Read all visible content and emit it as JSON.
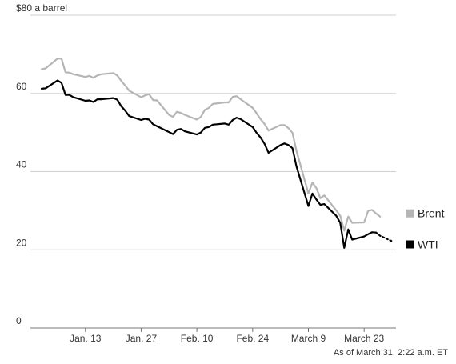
{
  "chart_data": {
    "type": "line",
    "unit_label": "$80 a barrel",
    "ylim": [
      0,
      80
    ],
    "yticks": [
      {
        "value": 80,
        "label": "$80 a barrel"
      },
      {
        "value": 60,
        "label": "60"
      },
      {
        "value": 40,
        "label": "40"
      },
      {
        "value": 20,
        "label": "20"
      },
      {
        "value": 0,
        "label": "0"
      }
    ],
    "xlim": [
      "2020-01-02",
      "2020-03-31"
    ],
    "xticks": [
      {
        "date": "2020-01-13",
        "label": "Jan. 13"
      },
      {
        "date": "2020-01-27",
        "label": "Jan. 27"
      },
      {
        "date": "2020-02-10",
        "label": "Feb. 10"
      },
      {
        "date": "2020-02-24",
        "label": "Feb. 24"
      },
      {
        "date": "2020-03-09",
        "label": "March 9"
      },
      {
        "date": "2020-03-23",
        "label": "March 23"
      }
    ],
    "grid": true,
    "legend_placement": "right",
    "series": [
      {
        "name": "Brent",
        "color": "#b5b5b5",
        "points": [
          [
            "2020-01-02",
            66.2
          ],
          [
            "2020-01-03",
            66.4
          ],
          [
            "2020-01-06",
            68.9
          ],
          [
            "2020-01-07",
            68.9
          ],
          [
            "2020-01-08",
            65.4
          ],
          [
            "2020-01-09",
            65.3
          ],
          [
            "2020-01-10",
            64.9
          ],
          [
            "2020-01-13",
            64.2
          ],
          [
            "2020-01-14",
            64.5
          ],
          [
            "2020-01-15",
            64.0
          ],
          [
            "2020-01-16",
            64.6
          ],
          [
            "2020-01-17",
            64.9
          ],
          [
            "2020-01-20",
            65.2
          ],
          [
            "2020-01-21",
            64.6
          ],
          [
            "2020-01-22",
            63.2
          ],
          [
            "2020-01-23",
            62.0
          ],
          [
            "2020-01-24",
            60.7
          ],
          [
            "2020-01-27",
            59.0
          ],
          [
            "2020-01-28",
            59.5
          ],
          [
            "2020-01-29",
            59.8
          ],
          [
            "2020-01-30",
            58.3
          ],
          [
            "2020-01-31",
            58.2
          ],
          [
            "2020-02-03",
            54.5
          ],
          [
            "2020-02-04",
            54.0
          ],
          [
            "2020-02-05",
            55.3
          ],
          [
            "2020-02-06",
            55.0
          ],
          [
            "2020-02-07",
            54.5
          ],
          [
            "2020-02-10",
            53.3
          ],
          [
            "2020-02-11",
            54.0
          ],
          [
            "2020-02-12",
            55.8
          ],
          [
            "2020-02-13",
            56.3
          ],
          [
            "2020-02-14",
            57.3
          ],
          [
            "2020-02-17",
            57.7
          ],
          [
            "2020-02-18",
            57.7
          ],
          [
            "2020-02-19",
            59.1
          ],
          [
            "2020-02-20",
            59.3
          ],
          [
            "2020-02-21",
            58.5
          ],
          [
            "2020-02-24",
            56.3
          ],
          [
            "2020-02-25",
            54.9
          ],
          [
            "2020-02-26",
            53.4
          ],
          [
            "2020-02-27",
            52.2
          ],
          [
            "2020-02-28",
            50.5
          ],
          [
            "2020-03-02",
            51.9
          ],
          [
            "2020-03-03",
            51.9
          ],
          [
            "2020-03-04",
            51.1
          ],
          [
            "2020-03-05",
            49.9
          ],
          [
            "2020-03-06",
            45.3
          ],
          [
            "2020-03-09",
            34.4
          ],
          [
            "2020-03-10",
            37.2
          ],
          [
            "2020-03-11",
            35.8
          ],
          [
            "2020-03-12",
            33.2
          ],
          [
            "2020-03-13",
            33.9
          ],
          [
            "2020-03-16",
            30.1
          ],
          [
            "2020-03-17",
            28.7
          ],
          [
            "2020-03-18",
            24.9
          ],
          [
            "2020-03-19",
            28.5
          ],
          [
            "2020-03-20",
            26.9
          ],
          [
            "2020-03-23",
            27.0
          ],
          [
            "2020-03-24",
            30.0
          ],
          [
            "2020-03-25",
            30.2
          ],
          [
            "2020-03-26",
            29.3
          ],
          [
            "2020-03-27",
            28.5
          ]
        ]
      },
      {
        "name": "WTI",
        "color": "#000000",
        "points": [
          [
            "2020-01-02",
            61.2
          ],
          [
            "2020-01-03",
            61.3
          ],
          [
            "2020-01-06",
            63.3
          ],
          [
            "2020-01-07",
            62.7
          ],
          [
            "2020-01-08",
            59.6
          ],
          [
            "2020-01-09",
            59.6
          ],
          [
            "2020-01-10",
            59.0
          ],
          [
            "2020-01-13",
            58.1
          ],
          [
            "2020-01-14",
            58.2
          ],
          [
            "2020-01-15",
            57.8
          ],
          [
            "2020-01-16",
            58.5
          ],
          [
            "2020-01-17",
            58.5
          ],
          [
            "2020-01-20",
            58.8
          ],
          [
            "2020-01-21",
            58.4
          ],
          [
            "2020-01-22",
            56.7
          ],
          [
            "2020-01-23",
            55.6
          ],
          [
            "2020-01-24",
            54.2
          ],
          [
            "2020-01-27",
            53.2
          ],
          [
            "2020-01-28",
            53.5
          ],
          [
            "2020-01-29",
            53.3
          ],
          [
            "2020-01-30",
            52.1
          ],
          [
            "2020-01-31",
            51.6
          ],
          [
            "2020-02-03",
            50.1
          ],
          [
            "2020-02-04",
            49.6
          ],
          [
            "2020-02-05",
            50.7
          ],
          [
            "2020-02-06",
            50.9
          ],
          [
            "2020-02-07",
            50.3
          ],
          [
            "2020-02-10",
            49.5
          ],
          [
            "2020-02-11",
            50.0
          ],
          [
            "2020-02-12",
            51.2
          ],
          [
            "2020-02-13",
            51.4
          ],
          [
            "2020-02-14",
            52.0
          ],
          [
            "2020-02-17",
            52.3
          ],
          [
            "2020-02-18",
            52.0
          ],
          [
            "2020-02-19",
            53.2
          ],
          [
            "2020-02-20",
            53.8
          ],
          [
            "2020-02-21",
            53.4
          ],
          [
            "2020-02-24",
            51.4
          ],
          [
            "2020-02-25",
            49.9
          ],
          [
            "2020-02-26",
            48.7
          ],
          [
            "2020-02-27",
            47.1
          ],
          [
            "2020-02-28",
            44.8
          ],
          [
            "2020-03-02",
            46.8
          ],
          [
            "2020-03-03",
            47.2
          ],
          [
            "2020-03-04",
            46.8
          ],
          [
            "2020-03-05",
            46.0
          ],
          [
            "2020-03-06",
            41.3
          ],
          [
            "2020-03-09",
            31.2
          ],
          [
            "2020-03-10",
            34.4
          ],
          [
            "2020-03-11",
            32.9
          ],
          [
            "2020-03-12",
            31.5
          ],
          [
            "2020-03-13",
            31.7
          ],
          [
            "2020-03-16",
            28.7
          ],
          [
            "2020-03-17",
            26.9
          ],
          [
            "2020-03-18",
            20.5
          ],
          [
            "2020-03-19",
            25.2
          ],
          [
            "2020-03-20",
            22.6
          ],
          [
            "2020-03-23",
            23.4
          ],
          [
            "2020-03-24",
            24.0
          ],
          [
            "2020-03-25",
            24.5
          ],
          [
            "2020-03-26",
            24.4
          ]
        ],
        "dotted_points": [
          [
            "2020-03-26",
            24.4
          ],
          [
            "2020-03-27",
            23.6
          ],
          [
            "2020-03-30",
            22.2
          ]
        ]
      }
    ],
    "note": "As of March 31, 2:22 a.m. ET"
  }
}
